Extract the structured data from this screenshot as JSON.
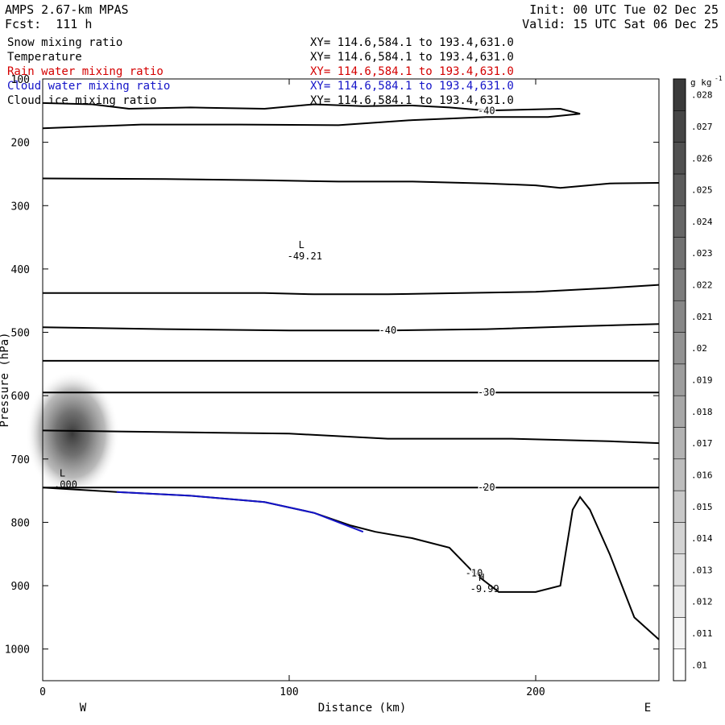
{
  "header": {
    "model": "AMPS 2.67-km MPAS",
    "fcst": "Fcst:  111 h",
    "init": "Init: 00 UTC Tue 02 Dec 25",
    "valid": "Valid: 15 UTC Sat 06 Dec 25"
  },
  "fields": [
    {
      "name": "Snow mixing ratio",
      "xy": "XY= 114.6,584.1 to 193.4,631.0",
      "color": "#000000"
    },
    {
      "name": "Temperature",
      "xy": "XY= 114.6,584.1 to 193.4,631.0",
      "color": "#000000"
    },
    {
      "name": "Rain water mixing ratio",
      "xy": "XY= 114.6,584.1 to 193.4,631.0",
      "color": "#d40000"
    },
    {
      "name": "Cloud water mixing ratio",
      "xy": "XY= 114.6,584.1 to 193.4,631.0",
      "color": "#1414c8"
    },
    {
      "name": "Cloud ice mixing ratio",
      "xy": "XY= 114.6,584.1 to 193.4,631.0",
      "color": "#000000"
    }
  ],
  "chart_data": {
    "type": "contour cross-section",
    "xlabel": "Distance (km)",
    "ylabel": "Pressure (hPa)",
    "xlim": [
      0,
      250
    ],
    "ylim": [
      1050,
      100
    ],
    "x_ticks": [
      "0",
      "100",
      "200"
    ],
    "y_ticks": [
      "100",
      "200",
      "300",
      "400",
      "500",
      "600",
      "700",
      "800",
      "900",
      "1000"
    ],
    "x_end_labels": {
      "west": "W",
      "east": "E"
    },
    "colorbar": {
      "unit": "g kg",
      "unit_exp": "-1",
      "ticks": [
        ".01",
        ".011",
        ".012",
        ".013",
        ".014",
        ".015",
        ".016",
        ".017",
        ".018",
        ".019",
        ".02",
        ".021",
        ".022",
        ".023",
        ".024",
        ".025",
        ".026",
        ".027",
        ".028"
      ]
    },
    "temperature_contours": [
      {
        "label": "-40",
        "points": [
          [
            0,
            138
          ],
          [
            20,
            140
          ],
          [
            35,
            147
          ],
          [
            60,
            145
          ],
          [
            90,
            147
          ],
          [
            110,
            140
          ],
          [
            130,
            143
          ],
          [
            150,
            142
          ],
          [
            165,
            145
          ],
          [
            180,
            150
          ],
          [
            210,
            147
          ],
          [
            218,
            155
          ],
          [
            205,
            160
          ],
          [
            180,
            160
          ],
          [
            150,
            165
          ],
          [
            120,
            173
          ],
          [
            80,
            172
          ],
          [
            40,
            172
          ],
          [
            0,
            178
          ]
        ]
      },
      {
        "label": "",
        "points": [
          [
            0,
            257
          ],
          [
            50,
            258
          ],
          [
            90,
            260
          ],
          [
            120,
            262
          ],
          [
            150,
            262
          ],
          [
            180,
            265
          ],
          [
            200,
            268
          ],
          [
            210,
            272
          ],
          [
            230,
            265
          ],
          [
            250,
            264
          ]
        ]
      },
      {
        "label": "",
        "points": [
          [
            0,
            438
          ],
          [
            50,
            438
          ],
          [
            90,
            438
          ],
          [
            110,
            440
          ],
          [
            140,
            440
          ],
          [
            170,
            438
          ],
          [
            200,
            436
          ],
          [
            230,
            430
          ],
          [
            250,
            425
          ]
        ]
      },
      {
        "label": "-40",
        "points": [
          [
            0,
            492
          ],
          [
            50,
            495
          ],
          [
            100,
            497
          ],
          [
            140,
            497
          ],
          [
            180,
            495
          ],
          [
            220,
            490
          ],
          [
            250,
            487
          ]
        ]
      },
      {
        "label": "",
        "points": [
          [
            0,
            545
          ],
          [
            60,
            545
          ],
          [
            120,
            545
          ],
          [
            180,
            545
          ],
          [
            250,
            545
          ]
        ]
      },
      {
        "label": "-30",
        "points": [
          [
            0,
            595
          ],
          [
            60,
            595
          ],
          [
            120,
            595
          ],
          [
            180,
            595
          ],
          [
            230,
            595
          ],
          [
            250,
            595
          ]
        ]
      },
      {
        "label": "",
        "points": [
          [
            0,
            655
          ],
          [
            60,
            658
          ],
          [
            100,
            660
          ],
          [
            140,
            668
          ],
          [
            190,
            668
          ],
          [
            230,
            672
          ],
          [
            250,
            675
          ]
        ]
      },
      {
        "label": "-20",
        "points": [
          [
            0,
            745
          ],
          [
            60,
            745
          ],
          [
            120,
            745
          ],
          [
            180,
            745
          ],
          [
            212,
            745
          ],
          [
            225,
            745
          ],
          [
            250,
            745
          ]
        ]
      },
      {
        "label": "-10",
        "points": [
          [
            0,
            745
          ],
          [
            30,
            752
          ],
          [
            60,
            758
          ],
          [
            90,
            768
          ],
          [
            110,
            785
          ],
          [
            125,
            805
          ],
          [
            135,
            815
          ],
          [
            150,
            825
          ],
          [
            165,
            840
          ],
          [
            175,
            880
          ],
          [
            185,
            910
          ],
          [
            200,
            910
          ],
          [
            210,
            900
          ],
          [
            215,
            780
          ],
          [
            218,
            760
          ],
          [
            222,
            780
          ],
          [
            230,
            850
          ],
          [
            240,
            950
          ],
          [
            250,
            985
          ]
        ]
      }
    ],
    "cloud_water_segment": {
      "points": [
        [
          30,
          752
        ],
        [
          60,
          758
        ],
        [
          90,
          768
        ],
        [
          110,
          785
        ],
        [
          130,
          815
        ]
      ]
    },
    "snow_max": {
      "x": 12,
      "p": 660,
      "value": ".028"
    },
    "extrema": [
      {
        "type": "L",
        "value": "-49.21",
        "x": 105,
        "p": 375
      },
      {
        "type": "L",
        "value": ".000",
        "x": 8,
        "p": 735
      },
      {
        "type": "H",
        "value": "-9.99",
        "x": 178,
        "p": 900
      }
    ]
  }
}
